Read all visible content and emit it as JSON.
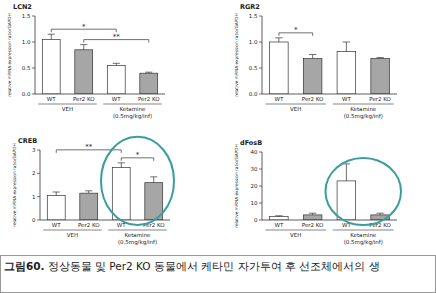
{
  "chart_data": [
    {
      "type": "bar",
      "title": "LCN2",
      "y_label": "relative mRNA expression ratio/GAPDH",
      "categories": [
        "WT",
        "Per2 KO",
        "WT",
        "Per2 KO"
      ],
      "values": [
        1.05,
        0.85,
        0.55,
        0.4
      ],
      "errors": [
        0.1,
        0.1,
        0.04,
        0.02
      ],
      "colors": [
        "#ffffff",
        "#a6a6a6",
        "#ffffff",
        "#a6a6a6"
      ],
      "groups": [
        {
          "label": [
            "VEH"
          ],
          "span": [
            0,
            1
          ]
        },
        {
          "label": [
            "Ketamine",
            "(0.5mg/kg/inf)"
          ],
          "span": [
            2,
            3
          ]
        }
      ],
      "annotations": [
        {
          "type": "bracket",
          "span": [
            1,
            3
          ],
          "label": "**"
        },
        {
          "type": "bracket",
          "span": [
            0,
            2
          ],
          "label": "*"
        }
      ],
      "ylim": [
        0,
        1.5
      ],
      "yticks": [
        {
          "value": 0,
          "label": "0.0"
        },
        {
          "value": 0.5,
          "label": "0.5"
        },
        {
          "value": 1,
          "label": "1.0"
        },
        {
          "value": 1.5,
          "label": "1.5"
        }
      ],
      "grid": false
    },
    {
      "type": "bar",
      "title": "RGR2",
      "y_label": "relative mRNA expression ratio/GAPDH",
      "categories": [
        "WT",
        "Per2 KO",
        "WT",
        "Per2 KO"
      ],
      "values": [
        1.0,
        0.68,
        0.82,
        0.68
      ],
      "errors": [
        0.08,
        0.08,
        0.18,
        0.02
      ],
      "colors": [
        "#ffffff",
        "#a6a6a6",
        "#ffffff",
        "#a6a6a6"
      ],
      "groups": [
        {
          "label": [
            "VEH"
          ],
          "span": [
            0,
            1
          ]
        },
        {
          "label": [
            "Ketamine",
            "(0.5mg/kg/inf)"
          ],
          "span": [
            2,
            3
          ]
        }
      ],
      "annotations": [
        {
          "type": "bracket",
          "span": [
            0,
            1
          ],
          "label": "*"
        }
      ],
      "ylim": [
        0,
        1.5
      ],
      "yticks": [
        {
          "value": 0,
          "label": "0.0"
        },
        {
          "value": 0.5,
          "label": "0.5"
        },
        {
          "value": 1,
          "label": "1.0"
        },
        {
          "value": 1.5,
          "label": "1.5"
        }
      ],
      "grid": false
    },
    {
      "type": "bar",
      "title": "CREB",
      "y_label": "relative mRNA expression ratio/GAPDH",
      "categories": [
        "WT",
        "Per2 KO",
        "WT",
        "Per2 KO"
      ],
      "values": [
        1.05,
        1.15,
        2.25,
        1.6
      ],
      "errors": [
        0.15,
        0.1,
        0.2,
        0.25
      ],
      "colors": [
        "#ffffff",
        "#a6a6a6",
        "#ffffff",
        "#a6a6a6"
      ],
      "groups": [
        {
          "label": [
            "VEH"
          ],
          "span": [
            0,
            1
          ]
        },
        {
          "label": [
            "Ketamine",
            "(0.5mg/kg/inf)"
          ],
          "span": [
            2,
            3
          ]
        }
      ],
      "annotations": [
        {
          "type": "bracket",
          "span": [
            2,
            3
          ],
          "label": "*"
        },
        {
          "type": "bracket",
          "span": [
            0,
            2
          ],
          "label": "**"
        },
        {
          "type": "ellipse",
          "span": [
            2,
            3
          ],
          "color": "#3a9e9e"
        }
      ],
      "ylim": [
        0,
        3
      ],
      "yticks": [
        0,
        1,
        2,
        3
      ],
      "grid": false
    },
    {
      "type": "bar",
      "title": "dFosB",
      "y_label": "relative mRNA expression ratio/GAPDH",
      "categories": [
        "WT",
        "Per2 KO",
        "WT",
        "Per2 KO"
      ],
      "values": [
        2,
        3,
        23,
        3
      ],
      "errors": [
        0.5,
        1,
        10,
        1
      ],
      "colors": [
        "#ffffff",
        "#a6a6a6",
        "#ffffff",
        "#a6a6a6"
      ],
      "groups": [
        {
          "label": [
            "VEH"
          ],
          "span": [
            0,
            1
          ]
        },
        {
          "label": [
            "Ketamine",
            "(0.5mg/kg/inf)"
          ],
          "span": [
            2,
            3
          ]
        }
      ],
      "annotations": [
        {
          "type": "ellipse",
          "span": [
            2,
            3
          ],
          "color": "#3a9e9e"
        }
      ],
      "ylim": [
        0,
        40
      ],
      "yticks": [
        0,
        10,
        20,
        30,
        40
      ],
      "grid": false
    }
  ],
  "caption": {
    "label": "그림60.",
    "text": "정상동물 및 Per2 KO 동물에서 케타민 자가투여 후 선조체에서의 생"
  }
}
